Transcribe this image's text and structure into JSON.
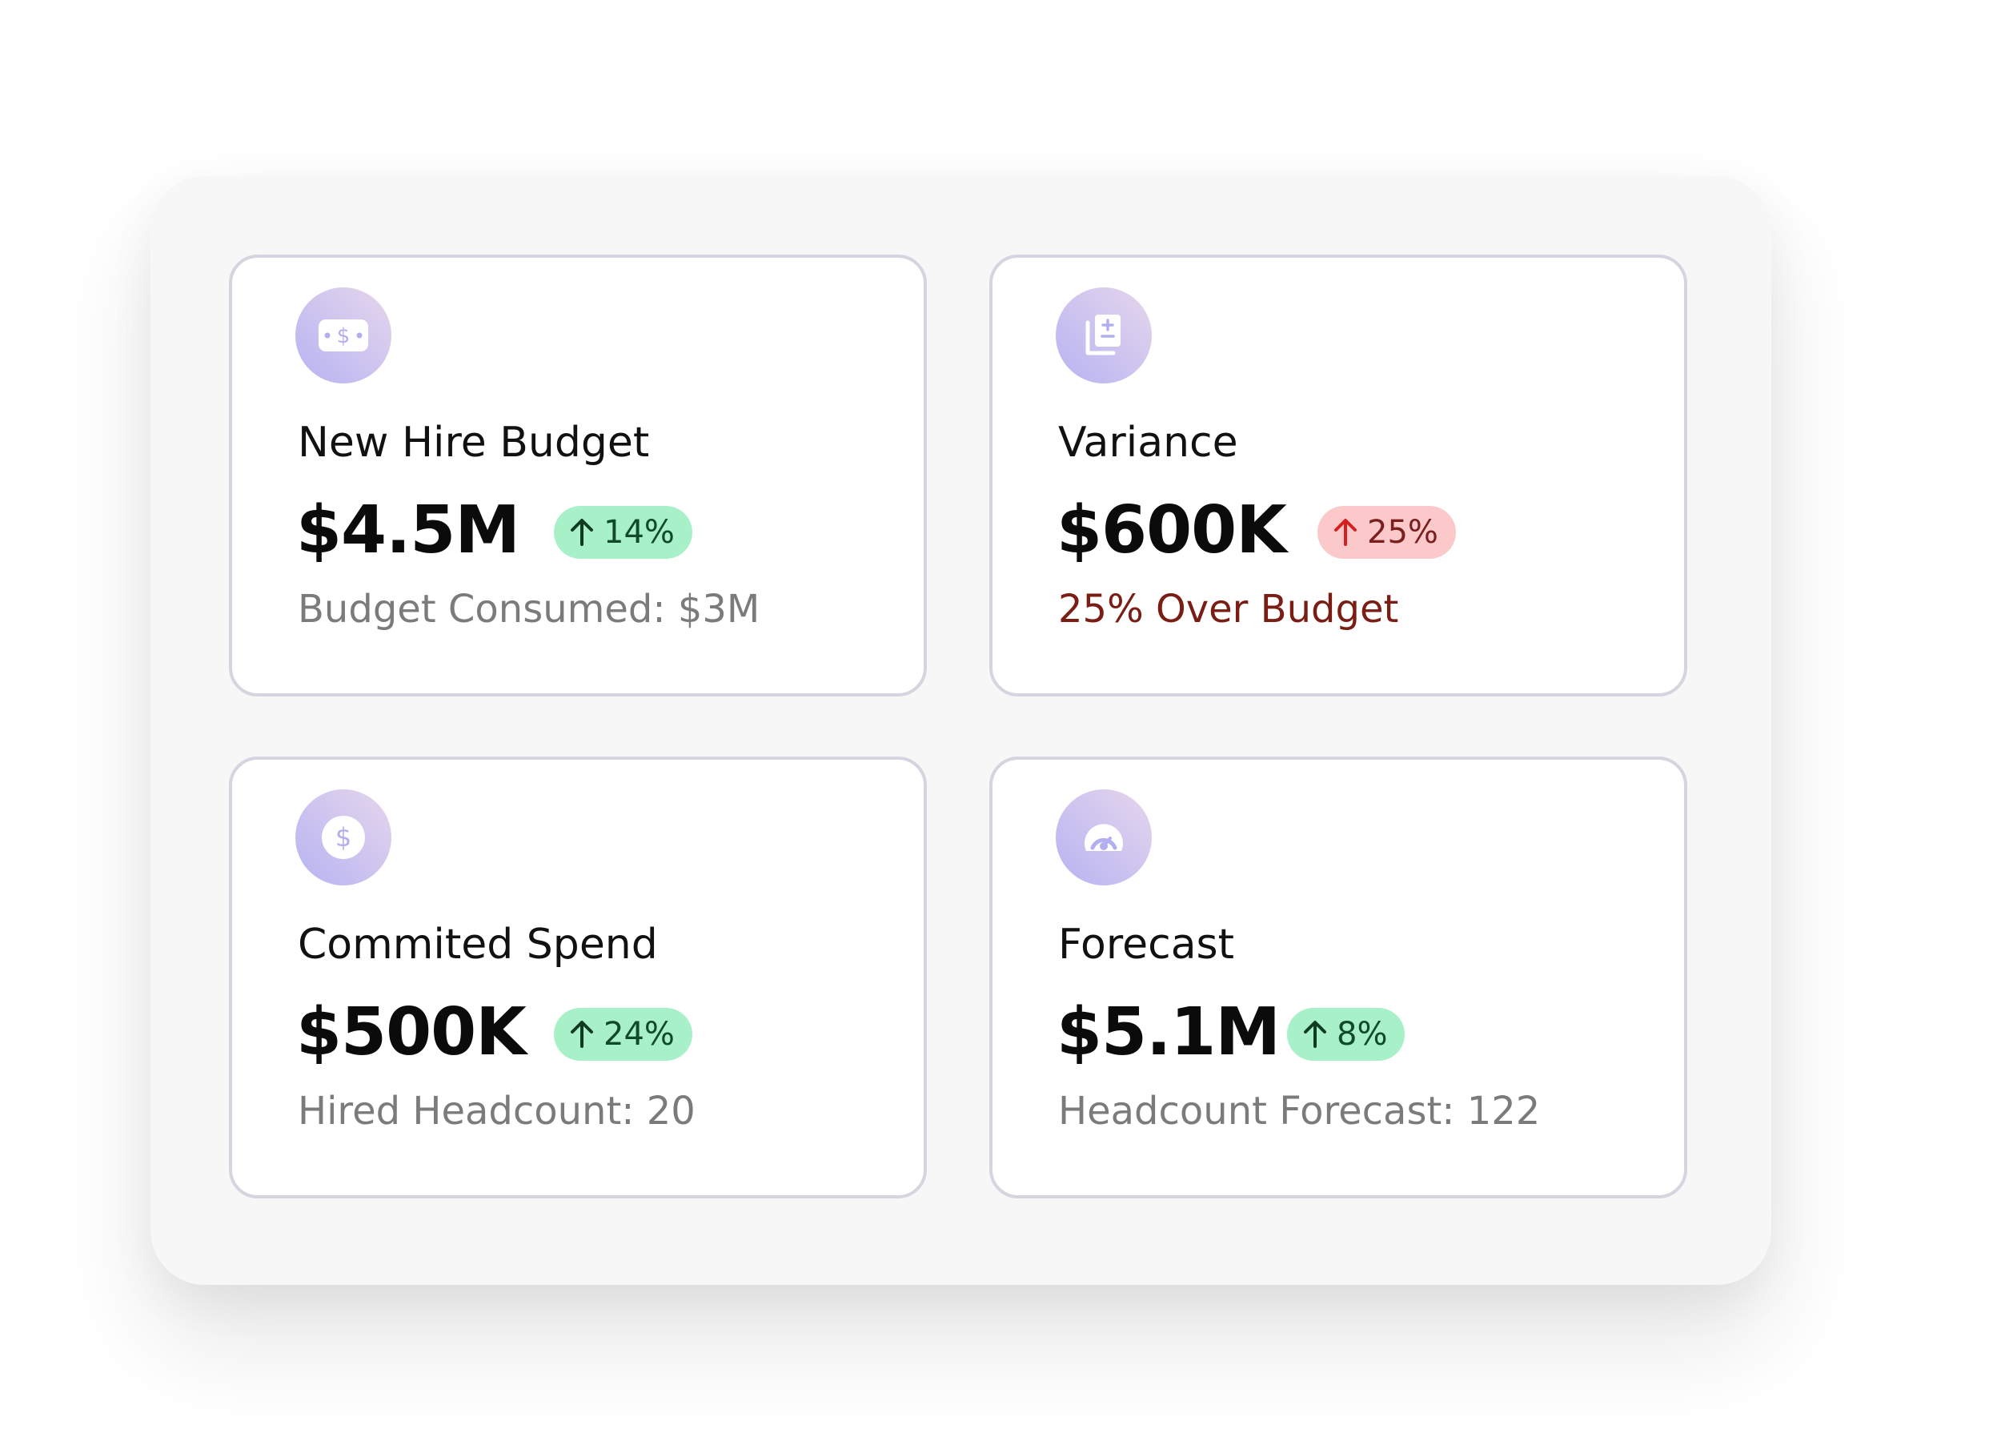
{
  "colors": {
    "panel_bg": "#f7f7f8",
    "card_border": "#d6d4de",
    "badge_green_bg": "#a8f0c8",
    "badge_green_text": "#0f4a2a",
    "badge_red_bg": "#fbc9c9",
    "badge_red_text": "#7a1f1f",
    "warning_text": "#7a1d14",
    "muted_text": "#7b7b7b",
    "icon_gradient": [
      "#e6d6ec",
      "#b6b3f2"
    ]
  },
  "cards": [
    {
      "icon": "cash-icon",
      "title": "New Hire Budget",
      "value": "$4.5M",
      "change": "14%",
      "trend": "up",
      "status": "positive",
      "subtitle": "Budget Consumed: $3M"
    },
    {
      "icon": "document-icon",
      "title": "Variance",
      "value": "$600K",
      "change": "25%",
      "trend": "up",
      "status": "negative",
      "subtitle": "25% Over Budget"
    },
    {
      "icon": "dollar-coin-icon",
      "title": "Commited Spend",
      "value": "$500K",
      "change": "24%",
      "trend": "up",
      "status": "positive",
      "subtitle": "Hired Headcount: 20"
    },
    {
      "icon": "gauge-icon",
      "title": "Forecast",
      "value": "$5.1M",
      "change": "8%",
      "trend": "up",
      "status": "positive",
      "subtitle": "Headcount Forecast: 122"
    }
  ]
}
